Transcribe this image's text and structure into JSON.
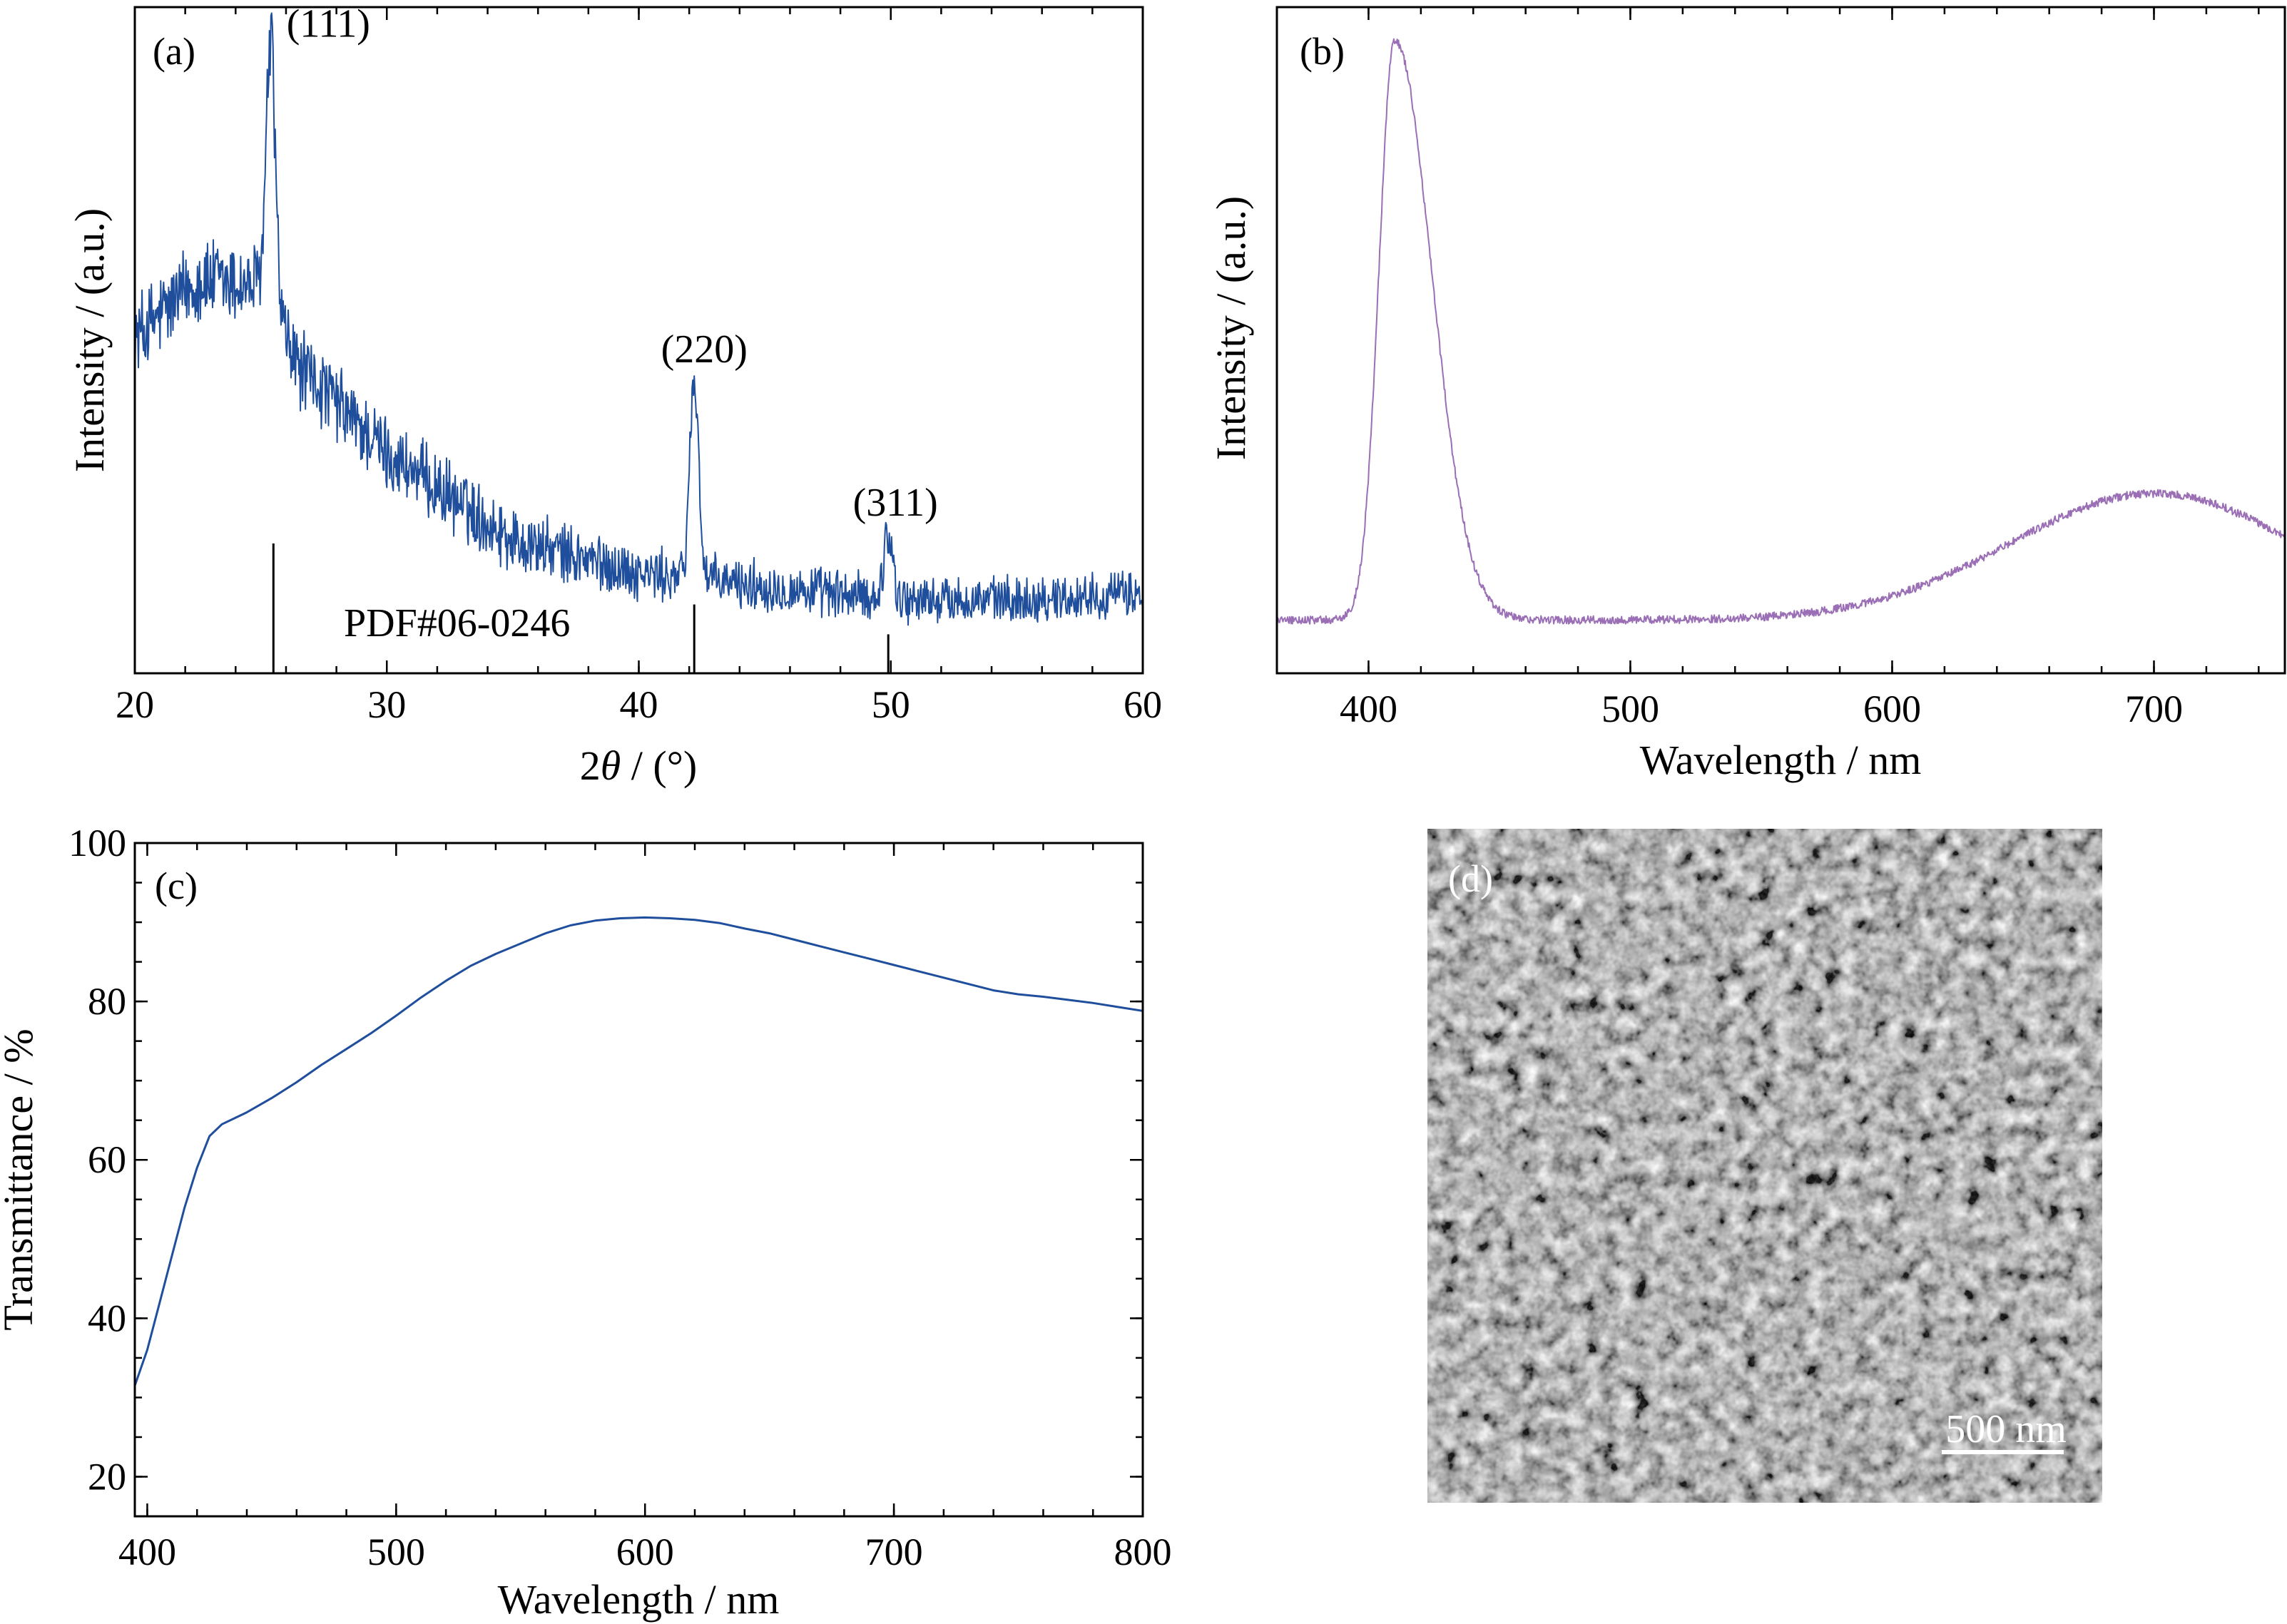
{
  "chart_data": [
    {
      "panel": "(a)",
      "type": "line",
      "xlabel_prefix": "2",
      "xlabel_theta": "θ",
      "xlabel_suffix": " / (°)",
      "ylabel": "Intensity / (a.u.)",
      "xlim": [
        20,
        60
      ],
      "xticks": [
        "20",
        "30",
        "40",
        "50",
        "60"
      ],
      "yticks_shown": false,
      "color": "#1f4e9c",
      "baseline": [
        [
          20,
          0.5
        ],
        [
          22.5,
          0.59
        ],
        [
          25,
          0.58
        ],
        [
          26.5,
          0.46
        ],
        [
          30,
          0.33
        ],
        [
          35,
          0.2
        ],
        [
          40,
          0.15
        ],
        [
          45,
          0.13
        ],
        [
          50,
          0.11
        ],
        [
          55,
          0.11
        ],
        [
          60,
          0.12
        ]
      ],
      "noise_amplitude": [
        [
          20,
          0.06
        ],
        [
          30,
          0.05
        ],
        [
          40,
          0.035
        ],
        [
          60,
          0.03
        ]
      ],
      "peaks": [
        {
          "label": "(111)",
          "x": 25.4,
          "height": 0.95,
          "width": 0.18
        },
        {
          "label": "(220)",
          "x": 42.2,
          "height": 0.44,
          "width": 0.18
        },
        {
          "label": "(311)",
          "x": 49.9,
          "height": 0.21,
          "width": 0.18
        }
      ],
      "reference": {
        "label": "PDF#06-0246",
        "positions": [
          25.5,
          42.2,
          49.9
        ],
        "relative_heights": [
          1.0,
          0.53,
          0.3
        ]
      }
    },
    {
      "panel": "(b)",
      "type": "line",
      "xlabel": "Wavelength / nm",
      "ylabel": "Intensity / (a.u.)",
      "xlim": [
        365,
        750
      ],
      "xticks": [
        "400",
        "500",
        "600",
        "700"
      ],
      "yticks_shown": false,
      "color": "#9b6fb5",
      "components": {
        "emission_peak": {
          "center": 410,
          "height": 0.95,
          "rise_width": 6,
          "decay_width": 14
        },
        "broad_band": {
          "center": 700,
          "height": 0.27,
          "width": 55
        },
        "background": 0.08
      }
    },
    {
      "panel": "(c)",
      "type": "line",
      "xlabel": "Wavelength / nm",
      "ylabel": "Transmittance / %",
      "xlim": [
        395,
        800
      ],
      "ylim": [
        15,
        100
      ],
      "xticks": [
        "400",
        "500",
        "600",
        "700",
        "800"
      ],
      "yticks": [
        "20",
        "40",
        "60",
        "80",
        "100"
      ],
      "color": "#1f4e9c",
      "x": [
        395,
        400,
        405,
        410,
        415,
        420,
        425,
        430,
        440,
        450,
        460,
        470,
        480,
        490,
        500,
        510,
        520,
        530,
        540,
        550,
        560,
        570,
        580,
        590,
        600,
        610,
        620,
        630,
        640,
        650,
        660,
        670,
        680,
        690,
        700,
        710,
        720,
        730,
        740,
        750,
        760,
        770,
        780,
        790,
        800
      ],
      "y": [
        31.5,
        36,
        42,
        48,
        54,
        59,
        63,
        64.5,
        66,
        67.8,
        69.8,
        72,
        74,
        76,
        78.2,
        80.5,
        82.6,
        84.5,
        86,
        87.3,
        88.6,
        89.6,
        90.2,
        90.5,
        90.6,
        90.5,
        90.3,
        89.9,
        89.2,
        88.6,
        87.8,
        87,
        86.2,
        85.4,
        84.6,
        83.8,
        83,
        82.2,
        81.4,
        80.9,
        80.6,
        80.2,
        79.8,
        79.3,
        78.8
      ]
    },
    {
      "panel": "(d)",
      "type": "image",
      "scale_bar": "500 nm"
    }
  ]
}
